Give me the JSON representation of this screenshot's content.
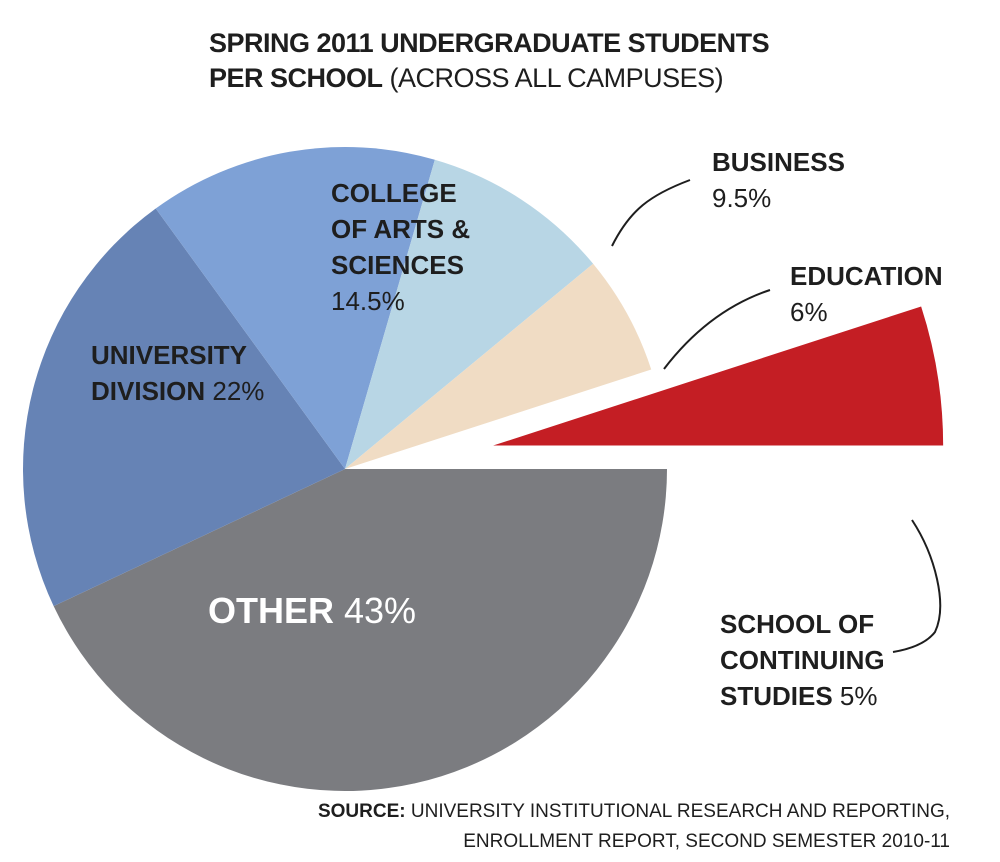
{
  "chart_data": {
    "type": "pie",
    "title": "SPRING 2011 UNDERGRADUATE STUDENTS",
    "subtitle_bold": "PER SCHOOL",
    "subtitle": "(ACROSS ALL CAMPUSES)",
    "slices": [
      {
        "label": "OTHER",
        "value": 43,
        "value_label": "43%",
        "color": "#7b7c80"
      },
      {
        "label": "UNIVERSITY DIVISION",
        "value": 22,
        "value_label": "22%",
        "color": "#6683b5"
      },
      {
        "label": "COLLEGE OF ARTS & SCIENCES",
        "value": 14.5,
        "value_label": "14.5%",
        "color": "#7ea1d6"
      },
      {
        "label": "BUSINESS",
        "value": 9.5,
        "value_label": "9.5%",
        "color": "#b8d6e5"
      },
      {
        "label": "EDUCATION",
        "value": 6,
        "value_label": "6%",
        "color": "#f0dcc4"
      },
      {
        "label": "SCHOOL OF CONTINUING STUDIES",
        "value": 5,
        "value_label": "5%",
        "color": "#c41e24",
        "exploded": true
      }
    ],
    "source_label": "SOURCE:",
    "source_lines": [
      "UNIVERSITY INSTITUTIONAL RESEARCH AND REPORTING,",
      "ENROLLMENT REPORT, SECOND SEMESTER 2010-11"
    ]
  },
  "labels": {
    "other_name": "OTHER",
    "other_value": "43%",
    "univ_line1": "UNIVERSITY",
    "univ_line2": "DIVISION",
    "univ_value": "22%",
    "cas_line1": "COLLEGE",
    "cas_line2": "OF ARTS &",
    "cas_line3": "SCIENCES",
    "cas_value": "14.5%",
    "bus_name": "BUSINESS",
    "bus_value": "9.5%",
    "edu_name": "EDUCATION",
    "edu_value": "6%",
    "scs_line1": "SCHOOL OF",
    "scs_line2": "CONTINUING",
    "scs_line3": "STUDIES",
    "scs_value": "5%"
  }
}
